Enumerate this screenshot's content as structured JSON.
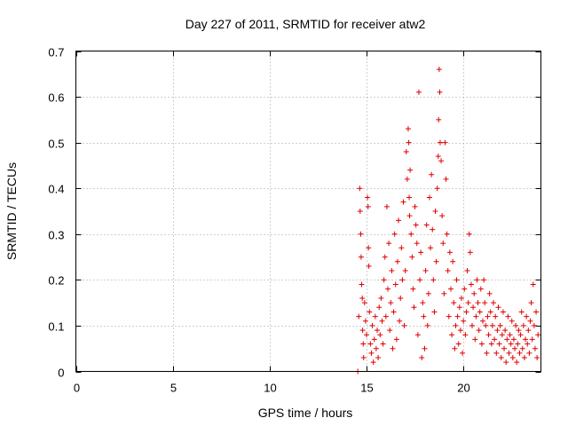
{
  "chart_data": {
    "type": "scatter",
    "title": "Day 227 of 2011, SRMTID for receiver atw2",
    "xlabel": "GPS time / hours",
    "ylabel": "SRMTID / TECUs",
    "xlim": [
      0,
      24
    ],
    "ylim": [
      0,
      0.7
    ],
    "xticks": [
      0,
      5,
      10,
      15,
      20
    ],
    "xtick_labels": [
      "0",
      "5",
      "10",
      "15",
      "20"
    ],
    "yticks": [
      0,
      0.1,
      0.2,
      0.3,
      0.4,
      0.5,
      0.6,
      0.7
    ],
    "ytick_labels": [
      "0",
      "0.1",
      "0.2",
      "0.3",
      "0.4",
      "0.5",
      "0.6",
      "0.7"
    ],
    "grid": true,
    "marker": "+",
    "color": "#e00000",
    "series": [
      {
        "name": "atw2",
        "points": [
          [
            14.55,
            0.0
          ],
          [
            14.6,
            0.12
          ],
          [
            14.65,
            0.4
          ],
          [
            14.67,
            0.35
          ],
          [
            14.7,
            0.3
          ],
          [
            14.72,
            0.25
          ],
          [
            14.75,
            0.19
          ],
          [
            14.78,
            0.16
          ],
          [
            14.8,
            0.09
          ],
          [
            14.83,
            0.06
          ],
          [
            14.85,
            0.03
          ],
          [
            14.9,
            0.15
          ],
          [
            14.95,
            0.11
          ],
          [
            15.0,
            0.08
          ],
          [
            15.05,
            0.38
          ],
          [
            15.08,
            0.36
          ],
          [
            15.1,
            0.27
          ],
          [
            15.12,
            0.23
          ],
          [
            15.15,
            0.13
          ],
          [
            15.2,
            0.06
          ],
          [
            15.25,
            0.04
          ],
          [
            15.3,
            0.1
          ],
          [
            15.35,
            0.02
          ],
          [
            15.4,
            0.07
          ],
          [
            15.45,
            0.12
          ],
          [
            15.5,
            0.05
          ],
          [
            15.55,
            0.09
          ],
          [
            15.6,
            0.03
          ],
          [
            15.65,
            0.14
          ],
          [
            15.7,
            0.08
          ],
          [
            15.75,
            0.16
          ],
          [
            15.8,
            0.11
          ],
          [
            15.85,
            0.06
          ],
          [
            15.9,
            0.2
          ],
          [
            15.95,
            0.25
          ],
          [
            16.0,
            0.12
          ],
          [
            16.05,
            0.36
          ],
          [
            16.1,
            0.18
          ],
          [
            16.15,
            0.28
          ],
          [
            16.2,
            0.09
          ],
          [
            16.25,
            0.15
          ],
          [
            16.3,
            0.22
          ],
          [
            16.35,
            0.05
          ],
          [
            16.4,
            0.13
          ],
          [
            16.45,
            0.3
          ],
          [
            16.5,
            0.19
          ],
          [
            16.55,
            0.07
          ],
          [
            16.6,
            0.24
          ],
          [
            16.65,
            0.33
          ],
          [
            16.7,
            0.11
          ],
          [
            16.75,
            0.16
          ],
          [
            16.8,
            0.27
          ],
          [
            16.85,
            0.2
          ],
          [
            16.9,
            0.37
          ],
          [
            16.95,
            0.1
          ],
          [
            17.0,
            0.22
          ],
          [
            17.05,
            0.48
          ],
          [
            17.1,
            0.42
          ],
          [
            17.15,
            0.53
          ],
          [
            17.18,
            0.5
          ],
          [
            17.2,
            0.38
          ],
          [
            17.22,
            0.34
          ],
          [
            17.25,
            0.44
          ],
          [
            17.3,
            0.3
          ],
          [
            17.35,
            0.25
          ],
          [
            17.4,
            0.18
          ],
          [
            17.45,
            0.14
          ],
          [
            17.5,
            0.36
          ],
          [
            17.55,
            0.32
          ],
          [
            17.6,
            0.28
          ],
          [
            17.65,
            0.08
          ],
          [
            17.7,
            0.61
          ],
          [
            17.75,
            0.2
          ],
          [
            17.8,
            0.26
          ],
          [
            17.85,
            0.03
          ],
          [
            17.9,
            0.15
          ],
          [
            17.95,
            0.12
          ],
          [
            18.0,
            0.05
          ],
          [
            18.05,
            0.22
          ],
          [
            18.1,
            0.32
          ],
          [
            18.15,
            0.1
          ],
          [
            18.2,
            0.17
          ],
          [
            18.25,
            0.38
          ],
          [
            18.3,
            0.27
          ],
          [
            18.35,
            0.43
          ],
          [
            18.4,
            0.31
          ],
          [
            18.45,
            0.2
          ],
          [
            18.5,
            0.13
          ],
          [
            18.55,
            0.35
          ],
          [
            18.6,
            0.24
          ],
          [
            18.65,
            0.4
          ],
          [
            18.7,
            0.47
          ],
          [
            18.72,
            0.55
          ],
          [
            18.75,
            0.66
          ],
          [
            18.78,
            0.61
          ],
          [
            18.8,
            0.5
          ],
          [
            18.85,
            0.46
          ],
          [
            18.9,
            0.34
          ],
          [
            18.95,
            0.28
          ],
          [
            19.0,
            0.17
          ],
          [
            19.05,
            0.5
          ],
          [
            19.1,
            0.42
          ],
          [
            19.15,
            0.3
          ],
          [
            19.2,
            0.22
          ],
          [
            19.25,
            0.12
          ],
          [
            19.3,
            0.26
          ],
          [
            19.35,
            0.18
          ],
          [
            19.4,
            0.08
          ],
          [
            19.45,
            0.24
          ],
          [
            19.5,
            0.15
          ],
          [
            19.55,
            0.05
          ],
          [
            19.6,
            0.1
          ],
          [
            19.65,
            0.2
          ],
          [
            19.7,
            0.12
          ],
          [
            19.75,
            0.06
          ],
          [
            19.8,
            0.14
          ],
          [
            19.85,
            0.09
          ],
          [
            19.9,
            0.16
          ],
          [
            19.95,
            0.04
          ],
          [
            20.0,
            0.11
          ],
          [
            20.05,
            0.18
          ],
          [
            20.1,
            0.08
          ],
          [
            20.15,
            0.13
          ],
          [
            20.2,
            0.22
          ],
          [
            20.25,
            0.15
          ],
          [
            20.3,
            0.3
          ],
          [
            20.35,
            0.26
          ],
          [
            20.4,
            0.19
          ],
          [
            20.45,
            0.1
          ],
          [
            20.5,
            0.14
          ],
          [
            20.55,
            0.17
          ],
          [
            20.6,
            0.07
          ],
          [
            20.65,
            0.12
          ],
          [
            20.7,
            0.2
          ],
          [
            20.75,
            0.15
          ],
          [
            20.8,
            0.09
          ],
          [
            20.85,
            0.13
          ],
          [
            20.9,
            0.18
          ],
          [
            20.95,
            0.06
          ],
          [
            21.0,
            0.11
          ],
          [
            21.05,
            0.2
          ],
          [
            21.1,
            0.15
          ],
          [
            21.15,
            0.1
          ],
          [
            21.2,
            0.04
          ],
          [
            21.25,
            0.12
          ],
          [
            21.3,
            0.08
          ],
          [
            21.35,
            0.17
          ],
          [
            21.4,
            0.13
          ],
          [
            21.45,
            0.06
          ],
          [
            21.5,
            0.1
          ],
          [
            21.55,
            0.15
          ],
          [
            21.6,
            0.07
          ],
          [
            21.65,
            0.12
          ],
          [
            21.7,
            0.04
          ],
          [
            21.75,
            0.09
          ],
          [
            21.8,
            0.14
          ],
          [
            21.85,
            0.06
          ],
          [
            21.9,
            0.1
          ],
          [
            21.95,
            0.03
          ],
          [
            22.0,
            0.08
          ],
          [
            22.05,
            0.13
          ],
          [
            22.1,
            0.05
          ],
          [
            22.15,
            0.09
          ],
          [
            22.2,
            0.02
          ],
          [
            22.25,
            0.07
          ],
          [
            22.3,
            0.12
          ],
          [
            22.35,
            0.04
          ],
          [
            22.4,
            0.08
          ],
          [
            22.45,
            0.06
          ],
          [
            22.5,
            0.11
          ],
          [
            22.55,
            0.03
          ],
          [
            22.6,
            0.07
          ],
          [
            22.65,
            0.05
          ],
          [
            22.7,
            0.1
          ],
          [
            22.75,
            0.02
          ],
          [
            22.8,
            0.06
          ],
          [
            22.85,
            0.09
          ],
          [
            22.9,
            0.04
          ],
          [
            22.95,
            0.08
          ],
          [
            23.0,
            0.13
          ],
          [
            23.05,
            0.05
          ],
          [
            23.1,
            0.1
          ],
          [
            23.15,
            0.03
          ],
          [
            23.2,
            0.07
          ],
          [
            23.25,
            0.12
          ],
          [
            23.3,
            0.06
          ],
          [
            23.35,
            0.09
          ],
          [
            23.4,
            0.04
          ],
          [
            23.45,
            0.11
          ],
          [
            23.5,
            0.15
          ],
          [
            23.55,
            0.07
          ],
          [
            23.6,
            0.19
          ],
          [
            23.65,
            0.1
          ],
          [
            23.7,
            0.05
          ],
          [
            23.75,
            0.13
          ],
          [
            23.8,
            0.03
          ],
          [
            23.85,
            0.08
          ]
        ]
      }
    ]
  }
}
